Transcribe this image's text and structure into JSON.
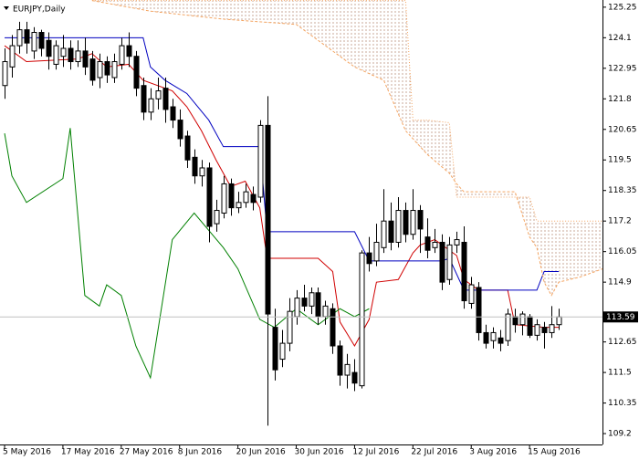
{
  "chart_data": {
    "type": "candlestick",
    "title": "EURJPY,Daily",
    "ylim": [
      108.79,
      125.52
    ],
    "xlim": [
      -0.63,
      82
    ],
    "yticks": [
      125.25,
      124.1,
      122.95,
      121.8,
      120.65,
      119.5,
      118.35,
      117.2,
      116.05,
      114.9,
      112.65,
      111.5,
      110.35,
      109.2
    ],
    "xticks": [
      {
        "value": 0,
        "label": "5 May 2016"
      },
      {
        "value": 8,
        "label": "17 May 2016"
      },
      {
        "value": 16,
        "label": "27 May 2016"
      },
      {
        "value": 24,
        "label": "8 Jun 2016"
      },
      {
        "value": 32,
        "label": "20 Jun 2016"
      },
      {
        "value": 40,
        "label": "30 Jun 2016"
      },
      {
        "value": 48,
        "label": "12 Jul 2016"
      },
      {
        "value": 56,
        "label": "22 Jul 2016"
      },
      {
        "value": 64,
        "label": "3 Aug 2016"
      },
      {
        "value": 72,
        "label": "15 Aug 2016"
      }
    ],
    "up_color": "#ffffff",
    "down_color": "#000000",
    "open": [
      122.3,
      123.0,
      123.8,
      124.4,
      123.6,
      124.3,
      124.0,
      123.1,
      123.4,
      123.7,
      123.2,
      123.6,
      123.3,
      122.6,
      123.2,
      122.6,
      123.1,
      123.8,
      123.4,
      122.3,
      121.3,
      121.8,
      122.2,
      121.5,
      121.0,
      120.4,
      119.6,
      118.9,
      119.2,
      117.1,
      117.5,
      118.6,
      117.7,
      117.9,
      118.2,
      118.1,
      120.8,
      113.2,
      112.0,
      112.6,
      113.6,
      114.3,
      114.0,
      114.5,
      113.6,
      113.9,
      112.5,
      111.4,
      111.5,
      111.0,
      116.0,
      115.7,
      116.2,
      117.2,
      116.4,
      117.6,
      116.7,
      117.6,
      116.6,
      116.2,
      116.4,
      115.0,
      116.3,
      116.4,
      114.1,
      114.7,
      113.0,
      112.7,
      112.8,
      112.7,
      113.6,
      113.3,
      113.6,
      112.9,
      113.2,
      113.0,
      113.3
    ],
    "high": [
      123.7,
      124.2,
      124.7,
      124.7,
      124.5,
      124.4,
      124.3,
      124.0,
      124.2,
      124.0,
      124.0,
      124.1,
      123.6,
      123.5,
      123.4,
      123.5,
      124.1,
      124.3,
      123.6,
      122.6,
      122.2,
      122.6,
      122.6,
      121.8,
      121.4,
      120.6,
      119.9,
      119.5,
      119.4,
      118.0,
      118.9,
      118.8,
      118.3,
      118.6,
      118.5,
      121.0,
      121.9,
      113.9,
      113.1,
      114.3,
      114.6,
      114.8,
      114.7,
      114.7,
      114.2,
      114.1,
      112.7,
      112.2,
      112.0,
      116.1,
      116.6,
      117.1,
      118.4,
      117.9,
      118.1,
      117.9,
      118.4,
      117.8,
      117.3,
      116.9,
      116.7,
      116.6,
      116.8,
      117.0,
      115.1,
      114.9,
      113.3,
      113.2,
      113.1,
      113.9,
      113.9,
      113.8,
      113.7,
      113.5,
      113.4,
      114.0,
      113.9
    ],
    "low": [
      121.8,
      122.6,
      123.5,
      123.5,
      123.3,
      123.4,
      122.9,
      122.9,
      123.0,
      122.9,
      123.0,
      122.7,
      122.3,
      122.2,
      122.4,
      122.4,
      122.9,
      123.0,
      121.9,
      121.0,
      121.0,
      121.4,
      120.9,
      120.7,
      120.0,
      119.2,
      118.6,
      118.5,
      116.4,
      116.8,
      117.3,
      117.4,
      117.5,
      117.7,
      117.6,
      117.9,
      109.5,
      111.2,
      111.7,
      112.3,
      113.3,
      113.8,
      113.7,
      113.3,
      113.3,
      112.2,
      111.0,
      110.9,
      110.8,
      110.9,
      115.3,
      115.5,
      116.0,
      116.1,
      116.2,
      116.4,
      116.5,
      116.0,
      115.8,
      116.0,
      114.6,
      114.8,
      116.0,
      113.9,
      113.9,
      112.7,
      112.4,
      112.4,
      112.3,
      112.5,
      113.0,
      112.9,
      112.8,
      112.7,
      112.4,
      112.8,
      113.1
    ],
    "close": [
      123.2,
      123.8,
      124.4,
      123.9,
      124.3,
      123.7,
      123.4,
      123.8,
      123.7,
      123.2,
      123.6,
      123.0,
      122.5,
      123.2,
      122.7,
      123.2,
      123.8,
      123.4,
      122.2,
      121.3,
      121.8,
      122.1,
      121.4,
      121.0,
      120.3,
      119.5,
      118.9,
      119.2,
      117.0,
      117.6,
      118.6,
      117.7,
      117.9,
      118.3,
      117.9,
      120.8,
      113.7,
      111.6,
      112.6,
      113.8,
      114.3,
      114.0,
      114.5,
      113.6,
      114.0,
      112.5,
      111.4,
      111.8,
      111.1,
      116.0,
      115.6,
      116.4,
      117.2,
      116.4,
      117.6,
      116.7,
      117.6,
      116.9,
      116.1,
      116.4,
      114.9,
      116.3,
      116.5,
      114.2,
      114.8,
      113.0,
      112.6,
      113.0,
      112.6,
      113.7,
      113.3,
      113.7,
      112.9,
      113.3,
      113.0,
      113.3,
      113.59
    ],
    "last_price": 113.59,
    "series": [
      {
        "color": "#d00000",
        "style": "solid",
        "x": [
          0,
          3,
          10,
          12,
          14,
          17,
          19,
          23,
          25,
          27,
          29,
          31,
          33,
          35,
          36,
          43,
          45,
          46,
          48,
          50,
          51,
          54,
          56,
          57,
          59,
          60,
          62,
          63,
          65,
          69,
          70,
          74,
          76
        ],
        "values": [
          123.8,
          123.2,
          123.3,
          123.5,
          123.0,
          123.1,
          122.5,
          122.1,
          121.5,
          120.6,
          119.5,
          118.5,
          118.7,
          117.7,
          115.8,
          115.8,
          115.3,
          113.4,
          112.5,
          113.5,
          114.9,
          115.0,
          116.0,
          116.3,
          116.5,
          116.3,
          115.9,
          115.0,
          114.6,
          114.6,
          113.3,
          113.2,
          113.2
        ]
      },
      {
        "color": "#0000c0",
        "style": "solid",
        "x": [
          0,
          19,
          20,
          22,
          25,
          28,
          30,
          35,
          36,
          48,
          50,
          60,
          61,
          63,
          70,
          73,
          74,
          76
        ],
        "values": [
          124.1,
          124.1,
          123.0,
          122.5,
          122.0,
          121.0,
          120.0,
          120.0,
          116.8,
          116.8,
          115.7,
          115.7,
          115.8,
          114.6,
          114.6,
          114.6,
          115.3,
          115.3
        ]
      },
      {
        "color": "#008000",
        "style": "solid",
        "x": [
          0,
          1,
          3,
          8,
          9,
          11,
          13,
          14,
          16,
          18,
          20,
          23,
          26,
          30,
          32,
          35,
          37,
          40,
          43,
          46,
          48,
          50
        ],
        "values": [
          120.5,
          118.9,
          117.9,
          118.8,
          120.7,
          114.4,
          114.0,
          114.8,
          114.4,
          112.5,
          111.3,
          116.5,
          117.5,
          116.2,
          115.4,
          113.5,
          113.2,
          113.9,
          113.3,
          113.9,
          113.6,
          113.9
        ]
      },
      {
        "color": "#f4a460",
        "style": "dashed",
        "x": [
          12,
          20,
          30,
          40,
          44,
          48,
          52,
          55,
          56,
          58,
          61,
          62,
          63,
          70,
          72,
          73,
          74,
          75,
          76,
          79,
          82
        ],
        "values": [
          125.5,
          125.1,
          124.8,
          124.6,
          123.8,
          123.0,
          122.5,
          120.6,
          120.3,
          119.7,
          119.0,
          118.6,
          118.3,
          118.3,
          116.6,
          116.2,
          114.9,
          114.4,
          114.9,
          115.1,
          115.4
        ]
      },
      {
        "color": "#f4a460",
        "style": "dotted",
        "x": [
          12,
          20,
          30,
          40,
          44,
          48,
          52,
          55,
          56,
          58,
          61,
          62,
          63,
          70,
          72,
          73,
          74,
          75,
          76,
          79,
          82
        ],
        "values": [
          125.5,
          125.5,
          125.5,
          125.5,
          125.5,
          125.5,
          125.5,
          125.5,
          121.0,
          121.0,
          120.9,
          118.1,
          118.1,
          118.1,
          118.1,
          117.2,
          117.2,
          117.2,
          117.2,
          117.2,
          117.2
        ]
      }
    ]
  }
}
